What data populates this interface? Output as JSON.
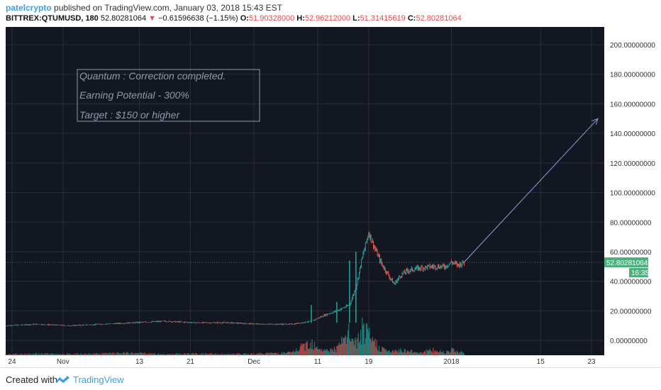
{
  "header": {
    "author": "patelcrypto",
    "published": " published on TradingView.com, January 03, 2018 15:43 EST",
    "symbol": "BITTREX:QTUMUSD, 180",
    "last": "52.80281064",
    "down_arrow": "▼",
    "change": "−0.61596638 (−1.15%)",
    "open_label": "O:",
    "open": "51.90328000",
    "high_label": "H:",
    "high": "52.96212000",
    "low_label": "L:",
    "low": "51.31415619",
    "close_label": "C:",
    "close": "52.80281064"
  },
  "annotation": {
    "line1": "Quantum : Correction completed.",
    "line2": "Earning Potential - 300%",
    "line3": "Target : $150 or higher"
  },
  "price_badge": "52.80281064",
  "time_badge": "16:35",
  "footer": {
    "created": "Created with",
    "brand": "TradingView",
    "logo_icon": "tradingview-logo-icon"
  },
  "colors": {
    "background": "#131722",
    "grid": "#2a2e39",
    "up": "#26a69a",
    "down": "#ef5350",
    "price_badge": "#4caf7d",
    "arrow": "#8e9cd8",
    "annotation_text": "#8e9aa8"
  },
  "chart_data": {
    "type": "candlestick",
    "title": "",
    "xlabel": "",
    "ylabel": "",
    "ylim": [
      -10,
      212
    ],
    "grid": true,
    "y_ticks": [
      0,
      20,
      40,
      60,
      80,
      100,
      120,
      140,
      160,
      180,
      200
    ],
    "y_tick_labels": [
      "0.00000000",
      "20.00000000",
      "40.00000000",
      "60.00000000",
      "80.00000000",
      "100.00000000",
      "120.00000000",
      "140.00000000",
      "160.00000000",
      "180.00000000",
      "200.00000000"
    ],
    "x_ticks": [
      {
        "label": "24",
        "date": "2017-10-24"
      },
      {
        "label": "Nov",
        "date": "2017-11-01"
      },
      {
        "label": "13",
        "date": "2017-11-13"
      },
      {
        "label": "21",
        "date": "2017-11-21"
      },
      {
        "label": "Dec",
        "date": "2017-12-01"
      },
      {
        "label": "11",
        "date": "2017-12-11"
      },
      {
        "label": "19",
        "date": "2017-12-19"
      },
      {
        "label": "2018",
        "date": "2018-01-01"
      },
      {
        "label": "15",
        "date": "2018-01-15"
      },
      {
        "label": "23",
        "date": "2018-01-23"
      }
    ],
    "xlim": [
      "2017-10-23",
      "2018-01-25"
    ],
    "series": [
      {
        "x": [
          "2017-10-23",
          "2017-10-28",
          "2017-11-02",
          "2017-11-07",
          "2017-11-12",
          "2017-11-17",
          "2017-11-22",
          "2017-11-27",
          "2017-12-02",
          "2017-12-07",
          "2017-12-10",
          "2017-12-12",
          "2017-12-14",
          "2017-12-16",
          "2017-12-17",
          "2017-12-18",
          "2017-12-19",
          "2017-12-20",
          "2017-12-21",
          "2017-12-22",
          "2017-12-23",
          "2017-12-24",
          "2017-12-25",
          "2017-12-27",
          "2017-12-29",
          "2017-12-31",
          "2018-01-01",
          "2018-01-02",
          "2018-01-03"
        ],
        "y": [
          10,
          11,
          10,
          11,
          12,
          13,
          12,
          12,
          11,
          11,
          13,
          17,
          20,
          24,
          36,
          56,
          73,
          62,
          52,
          45,
          38,
          44,
          47,
          49,
          50,
          50,
          53,
          51,
          52.8
        ]
      }
    ],
    "volume": {
      "x": [
        "2017-10-23",
        "2017-10-28",
        "2017-11-02",
        "2017-11-07",
        "2017-11-12",
        "2017-11-17",
        "2017-11-22",
        "2017-11-27",
        "2017-12-02",
        "2017-12-07",
        "2017-12-10",
        "2017-12-12",
        "2017-12-14",
        "2017-12-16",
        "2017-12-17",
        "2017-12-18",
        "2017-12-19",
        "2017-12-20",
        "2017-12-21",
        "2017-12-22",
        "2017-12-23",
        "2017-12-24",
        "2017-12-25",
        "2017-12-27",
        "2017-12-29",
        "2017-12-31",
        "2018-01-01",
        "2018-01-02",
        "2018-01-03"
      ],
      "y": [
        2,
        3,
        2,
        3,
        4,
        2,
        3,
        2,
        3,
        5,
        25,
        8,
        12,
        40,
        20,
        45,
        35,
        22,
        12,
        8,
        6,
        10,
        8,
        5,
        9,
        6,
        11,
        7,
        4
      ]
    },
    "spikes": [
      {
        "x": "2017-12-10",
        "high": 24
      },
      {
        "x": "2017-12-14",
        "high": 26
      },
      {
        "x": "2017-12-16",
        "high": 54
      },
      {
        "x": "2017-12-17",
        "high": 60
      }
    ],
    "projection_arrow": {
      "from": {
        "x": "2018-01-03",
        "y": 53
      },
      "to": {
        "x": "2018-01-24",
        "y": 150
      }
    }
  }
}
